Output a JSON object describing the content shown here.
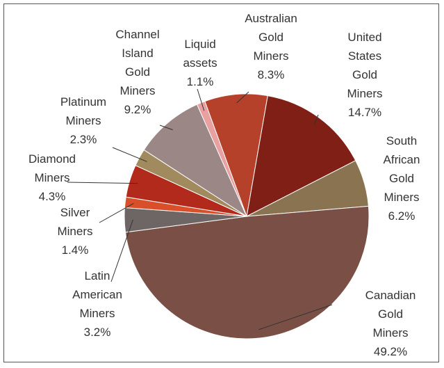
{
  "chart_data": {
    "type": "pie",
    "categories": [
      "Australian Gold Miners",
      "United States Gold Miners",
      "South African Gold Miners",
      "Canadian Gold Miners",
      "Latin American Miners",
      "Silver Miners",
      "Diamond Miners",
      "Platinum Miners",
      "Channel Island Gold Miners",
      "Liquid assets"
    ],
    "values": [
      8.3,
      14.7,
      6.2,
      49.2,
      3.2,
      1.4,
      4.3,
      2.3,
      9.2,
      1.1
    ],
    "value_labels": [
      "8.3%",
      "14.7%",
      "6.2%",
      "49.2%",
      "3.2%",
      "1.4%",
      "4.3%",
      "2.3%",
      "9.2%",
      "1.1%"
    ],
    "colors": [
      "#b5412a",
      "#7f1f16",
      "#8a7350",
      "#7a5046",
      "#6e6565",
      "#d94f2a",
      "#b22a1c",
      "#a08a5e",
      "#9b8785",
      "#e8a0a0"
    ]
  }
}
